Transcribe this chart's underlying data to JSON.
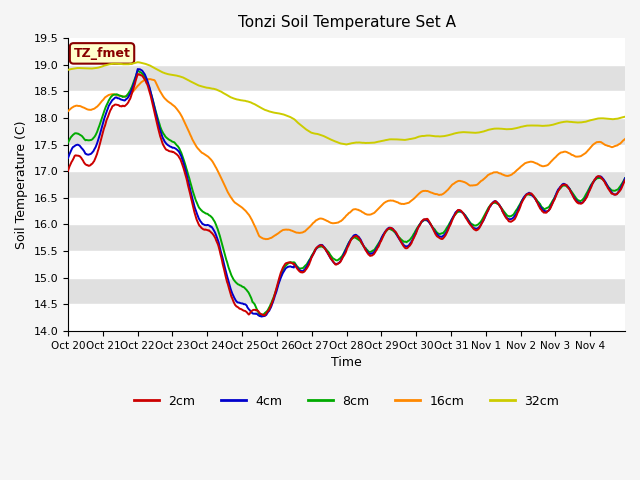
{
  "title": "Tonzi Soil Temperature Set A",
  "xlabel": "Time",
  "ylabel": "Soil Temperature (C)",
  "ylim": [
    14.0,
    19.5
  ],
  "yticks": [
    14.0,
    14.5,
    15.0,
    15.5,
    16.0,
    16.5,
    17.0,
    17.5,
    18.0,
    18.5,
    19.0,
    19.5
  ],
  "xtick_labels": [
    "Oct 20",
    "Oct 21",
    "Oct 22",
    "Oct 23",
    "Oct 24",
    "Oct 25",
    "Oct 26",
    "Oct 27",
    "Oct 28",
    "Oct 29",
    "Oct 30",
    "Oct 31",
    "Nov 1",
    "Nov 2",
    "Nov 3",
    "Nov 4"
  ],
  "legend_labels": [
    "2cm",
    "4cm",
    "8cm",
    "16cm",
    "32cm"
  ],
  "line_colors": [
    "#cc0000",
    "#0000cc",
    "#00aa00",
    "#ff8800",
    "#cccc00"
  ],
  "annotation_text": "TZ_fmet",
  "annotation_color": "#880000",
  "annotation_bg": "#ffffcc",
  "plot_bg": "#e8e8e8"
}
